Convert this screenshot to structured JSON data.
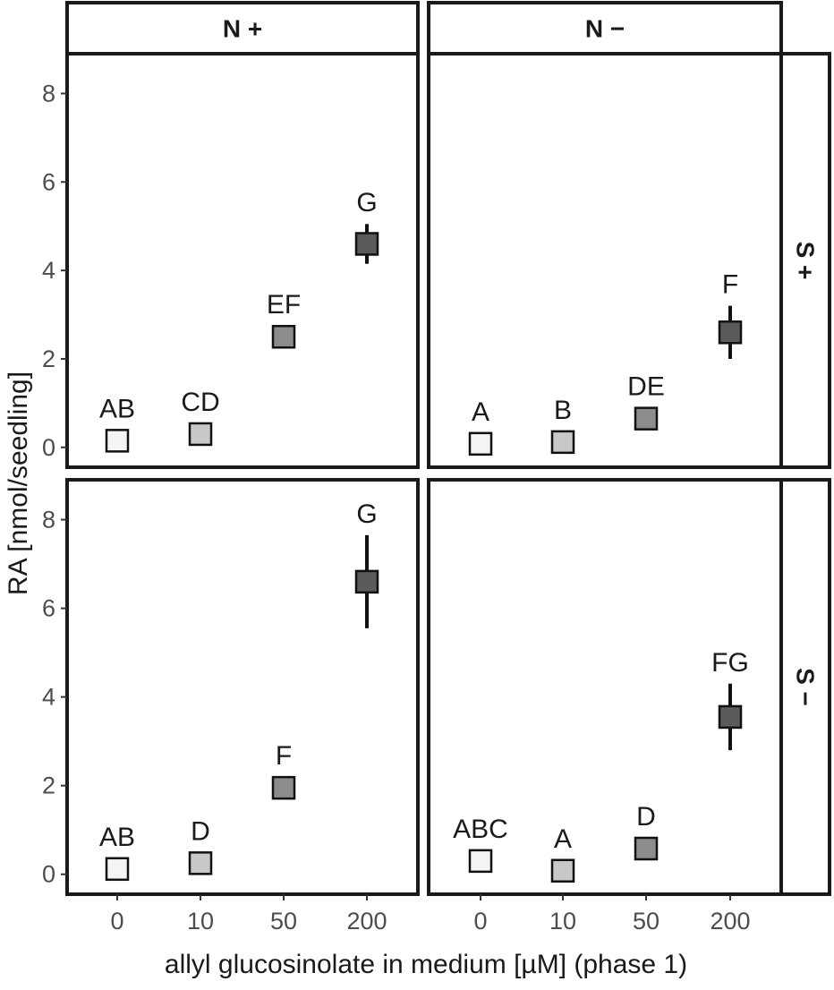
{
  "chart_data": {
    "type": "scatter",
    "xlabel": "allyl glucosinolate in medium [µM] (phase 1)",
    "ylabel": "RA [nmol/seedling]",
    "x_categories": [
      "0",
      "10",
      "50",
      "200"
    ],
    "y_ticks": [
      "0",
      "2",
      "4",
      "6",
      "8"
    ],
    "ylim": [
      -0.45,
      8.9
    ],
    "column_strips": [
      "N +",
      "N −"
    ],
    "row_strips": [
      "S +",
      "S −"
    ],
    "grid": false,
    "fill_colors": [
      "#f4f4f4",
      "#c8c8c8",
      "#8c8c8c",
      "#5a5a5a"
    ],
    "panels": [
      {
        "column": "N +",
        "row": "S +",
        "points": [
          {
            "x": "0",
            "y": 0.15,
            "err": 0,
            "label": "AB"
          },
          {
            "x": "10",
            "y": 0.3,
            "err": 0,
            "label": "CD"
          },
          {
            "x": "50",
            "y": 2.5,
            "err": 0.25,
            "label": "EF"
          },
          {
            "x": "200",
            "y": 4.6,
            "err": 0.45,
            "label": "G"
          }
        ]
      },
      {
        "column": "N −",
        "row": "S +",
        "points": [
          {
            "x": "0",
            "y": 0.08,
            "err": 0,
            "label": "A"
          },
          {
            "x": "10",
            "y": 0.12,
            "err": 0,
            "label": "B"
          },
          {
            "x": "50",
            "y": 0.65,
            "err": 0,
            "label": "DE"
          },
          {
            "x": "200",
            "y": 2.6,
            "err": 0.6,
            "label": "F"
          }
        ]
      },
      {
        "column": "N +",
        "row": "S −",
        "points": [
          {
            "x": "0",
            "y": 0.12,
            "err": 0,
            "label": "AB"
          },
          {
            "x": "10",
            "y": 0.25,
            "err": 0,
            "label": "D"
          },
          {
            "x": "50",
            "y": 1.95,
            "err": 0,
            "label": "F"
          },
          {
            "x": "200",
            "y": 6.6,
            "err": 1.05,
            "label": "G"
          }
        ]
      },
      {
        "column": "N −",
        "row": "S −",
        "points": [
          {
            "x": "0",
            "y": 0.3,
            "err": 0,
            "label": "ABC"
          },
          {
            "x": "10",
            "y": 0.08,
            "err": 0,
            "label": "A"
          },
          {
            "x": "50",
            "y": 0.58,
            "err": 0,
            "label": "D"
          },
          {
            "x": "200",
            "y": 3.55,
            "err": 0.75,
            "label": "FG"
          }
        ]
      }
    ]
  }
}
